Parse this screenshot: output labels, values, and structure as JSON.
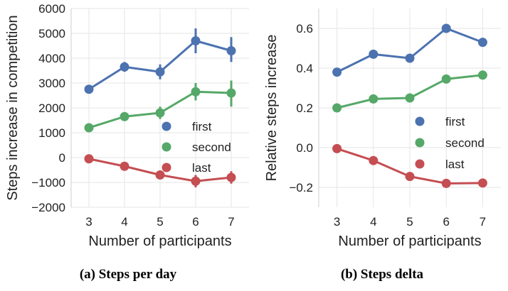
{
  "chart_data": [
    {
      "type": "line",
      "caption": "(a) Steps per day",
      "xlabel": "Number of participants",
      "ylabel": "Steps increase in competition",
      "x": [
        3,
        4,
        5,
        6,
        7
      ],
      "x_ticks": [
        "3",
        "4",
        "5",
        "6",
        "7"
      ],
      "ylim": [
        -2000,
        6000
      ],
      "y_ticks": [
        -2000,
        -1000,
        0,
        1000,
        2000,
        3000,
        4000,
        5000,
        6000
      ],
      "y_tick_labels": [
        "−2000",
        "−1000",
        "0",
        "1000",
        "2000",
        "3000",
        "4000",
        "5000",
        "6000"
      ],
      "legend_position": "right-middle",
      "series": [
        {
          "name": "first",
          "color": "#4c72b0",
          "values": [
            2750,
            3650,
            3450,
            4700,
            4300
          ],
          "err_low": [
            2650,
            3450,
            3150,
            4200,
            3850
          ],
          "err_high": [
            2850,
            3850,
            3750,
            5200,
            4850
          ]
        },
        {
          "name": "second",
          "color": "#55a868",
          "values": [
            1200,
            1650,
            1800,
            2650,
            2600
          ],
          "err_low": [
            1100,
            1500,
            1550,
            2300,
            2050
          ],
          "err_high": [
            1300,
            1800,
            2050,
            3000,
            3100
          ]
        },
        {
          "name": "last",
          "color": "#c44e52",
          "values": [
            -50,
            -350,
            -700,
            -950,
            -800
          ],
          "err_low": [
            -150,
            -450,
            -850,
            -1200,
            -1050
          ],
          "err_high": [
            50,
            -250,
            -550,
            -700,
            -550
          ]
        }
      ]
    },
    {
      "type": "line",
      "caption": "(b) Steps delta",
      "xlabel": "Number of participants",
      "ylabel": "Relative steps increase",
      "x": [
        3,
        4,
        5,
        6,
        7
      ],
      "x_ticks": [
        "3",
        "4",
        "5",
        "6",
        "7"
      ],
      "ylim": [
        -0.3,
        0.7
      ],
      "y_ticks": [
        -0.2,
        0.0,
        0.2,
        0.4,
        0.6
      ],
      "y_tick_labels": [
        "−0.2",
        "0.0",
        "0.2",
        "0.4",
        "0.6"
      ],
      "legend_position": "right-middle",
      "series": [
        {
          "name": "first",
          "color": "#4c72b0",
          "values": [
            0.38,
            0.47,
            0.45,
            0.6,
            0.53
          ]
        },
        {
          "name": "second",
          "color": "#55a868",
          "values": [
            0.2,
            0.245,
            0.25,
            0.345,
            0.365
          ]
        },
        {
          "name": "last",
          "color": "#c44e52",
          "values": [
            -0.005,
            -0.065,
            -0.145,
            -0.18,
            -0.178
          ]
        }
      ]
    }
  ]
}
